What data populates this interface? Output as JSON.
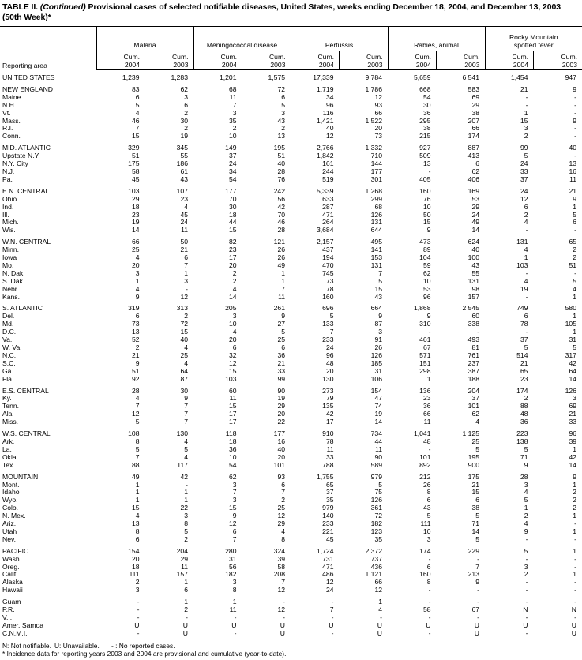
{
  "title": {
    "prefix": "TABLE II. ",
    "continued": "(Continued)",
    "text": " Provisional cases of selected notifiable diseases, United States, weeks ending December 18, 2004, and December 13, 2003 (50th Week)*"
  },
  "header": {
    "reporting_area": "Reporting area",
    "groups": [
      "Malaria",
      "Meningococcal disease",
      "Pertussis",
      "Rabies, animal",
      "Rocky Mountain spotted fever"
    ],
    "subcols": [
      {
        "l1": "Cum.",
        "l2": "2004"
      },
      {
        "l1": "Cum.",
        "l2": "2003"
      },
      {
        "l1": "Cum.",
        "l2": "2004"
      },
      {
        "l1": "Cum.",
        "l2": "2003"
      },
      {
        "l1": "Cum.",
        "l2": "2004"
      },
      {
        "l1": "Cum.",
        "l2": "2003"
      },
      {
        "l1": "Cum.",
        "l2": "2004"
      },
      {
        "l1": "Cum.",
        "l2": "2003"
      },
      {
        "l1": "Cum.",
        "l2": "2004"
      },
      {
        "l1": "Cum.",
        "l2": "2003"
      }
    ]
  },
  "groups": [
    {
      "rows": [
        {
          "area": "UNITED STATES",
          "values": [
            "1,239",
            "1,283",
            "1,201",
            "1,575",
            "17,339",
            "9,784",
            "5,659",
            "6,541",
            "1,454",
            "947"
          ]
        }
      ]
    },
    {
      "rows": [
        {
          "area": "NEW ENGLAND",
          "values": [
            "83",
            "62",
            "68",
            "72",
            "1,719",
            "1,786",
            "668",
            "583",
            "21",
            "9"
          ]
        },
        {
          "area": "Maine",
          "values": [
            "6",
            "3",
            "11",
            "6",
            "34",
            "12",
            "54",
            "69",
            "-",
            "-"
          ]
        },
        {
          "area": "N.H.",
          "values": [
            "5",
            "6",
            "7",
            "5",
            "96",
            "93",
            "30",
            "29",
            "-",
            "-"
          ]
        },
        {
          "area": "Vt.",
          "values": [
            "4",
            "2",
            "3",
            "3",
            "116",
            "66",
            "36",
            "38",
            "1",
            "-"
          ]
        },
        {
          "area": "Mass.",
          "values": [
            "46",
            "30",
            "35",
            "43",
            "1,421",
            "1,522",
            "295",
            "207",
            "15",
            "9"
          ]
        },
        {
          "area": "R.I.",
          "values": [
            "7",
            "2",
            "2",
            "2",
            "40",
            "20",
            "38",
            "66",
            "3",
            "-"
          ]
        },
        {
          "area": "Conn.",
          "values": [
            "15",
            "19",
            "10",
            "13",
            "12",
            "73",
            "215",
            "174",
            "2",
            "-"
          ]
        }
      ]
    },
    {
      "rows": [
        {
          "area": "MID. ATLANTIC",
          "values": [
            "329",
            "345",
            "149",
            "195",
            "2,766",
            "1,332",
            "927",
            "887",
            "99",
            "40"
          ]
        },
        {
          "area": "Upstate N.Y.",
          "values": [
            "51",
            "55",
            "37",
            "51",
            "1,842",
            "710",
            "509",
            "413",
            "5",
            "-"
          ]
        },
        {
          "area": "N.Y. City",
          "values": [
            "175",
            "186",
            "24",
            "40",
            "161",
            "144",
            "13",
            "6",
            "24",
            "13"
          ]
        },
        {
          "area": "N.J.",
          "values": [
            "58",
            "61",
            "34",
            "28",
            "244",
            "177",
            "-",
            "62",
            "33",
            "16"
          ]
        },
        {
          "area": "Pa.",
          "values": [
            "45",
            "43",
            "54",
            "76",
            "519",
            "301",
            "405",
            "406",
            "37",
            "11"
          ]
        }
      ]
    },
    {
      "rows": [
        {
          "area": "E.N. CENTRAL",
          "values": [
            "103",
            "107",
            "177",
            "242",
            "5,339",
            "1,268",
            "160",
            "169",
            "24",
            "21"
          ]
        },
        {
          "area": "Ohio",
          "values": [
            "29",
            "23",
            "70",
            "56",
            "633",
            "299",
            "76",
            "53",
            "12",
            "9"
          ]
        },
        {
          "area": "Ind.",
          "values": [
            "18",
            "4",
            "30",
            "42",
            "287",
            "68",
            "10",
            "29",
            "6",
            "1"
          ]
        },
        {
          "area": "Ill.",
          "values": [
            "23",
            "45",
            "18",
            "70",
            "471",
            "126",
            "50",
            "24",
            "2",
            "5"
          ]
        },
        {
          "area": "Mich.",
          "values": [
            "19",
            "24",
            "44",
            "46",
            "264",
            "131",
            "15",
            "49",
            "4",
            "6"
          ]
        },
        {
          "area": "Wis.",
          "values": [
            "14",
            "11",
            "15",
            "28",
            "3,684",
            "644",
            "9",
            "14",
            "-",
            "-"
          ]
        }
      ]
    },
    {
      "rows": [
        {
          "area": "W.N. CENTRAL",
          "values": [
            "66",
            "50",
            "82",
            "121",
            "2,157",
            "495",
            "473",
            "624",
            "131",
            "65"
          ]
        },
        {
          "area": "Minn.",
          "values": [
            "25",
            "21",
            "23",
            "26",
            "437",
            "141",
            "89",
            "40",
            "4",
            "2"
          ]
        },
        {
          "area": "Iowa",
          "values": [
            "4",
            "6",
            "17",
            "26",
            "194",
            "153",
            "104",
            "100",
            "1",
            "2"
          ]
        },
        {
          "area": "Mo.",
          "values": [
            "20",
            "7",
            "20",
            "49",
            "470",
            "131",
            "59",
            "43",
            "103",
            "51"
          ]
        },
        {
          "area": "N. Dak.",
          "values": [
            "3",
            "1",
            "2",
            "1",
            "745",
            "7",
            "62",
            "55",
            "-",
            "-"
          ]
        },
        {
          "area": "S. Dak.",
          "values": [
            "1",
            "3",
            "2",
            "1",
            "73",
            "5",
            "10",
            "131",
            "4",
            "5"
          ]
        },
        {
          "area": "Nebr.",
          "values": [
            "4",
            "-",
            "4",
            "7",
            "78",
            "15",
            "53",
            "98",
            "19",
            "4"
          ]
        },
        {
          "area": "Kans.",
          "values": [
            "9",
            "12",
            "14",
            "11",
            "160",
            "43",
            "96",
            "157",
            "-",
            "1"
          ]
        }
      ]
    },
    {
      "rows": [
        {
          "area": "S. ATLANTIC",
          "values": [
            "319",
            "313",
            "205",
            "261",
            "696",
            "664",
            "1,868",
            "2,545",
            "749",
            "580"
          ]
        },
        {
          "area": "Del.",
          "values": [
            "6",
            "2",
            "3",
            "9",
            "5",
            "9",
            "9",
            "60",
            "6",
            "1"
          ]
        },
        {
          "area": "Md.",
          "values": [
            "73",
            "72",
            "10",
            "27",
            "133",
            "87",
            "310",
            "338",
            "78",
            "105"
          ]
        },
        {
          "area": "D.C.",
          "values": [
            "13",
            "15",
            "4",
            "5",
            "7",
            "3",
            "-",
            "-",
            "-",
            "1"
          ]
        },
        {
          "area": "Va.",
          "values": [
            "52",
            "40",
            "20",
            "25",
            "233",
            "91",
            "461",
            "493",
            "37",
            "31"
          ]
        },
        {
          "area": "W. Va.",
          "values": [
            "2",
            "4",
            "6",
            "6",
            "24",
            "26",
            "67",
            "81",
            "5",
            "5"
          ]
        },
        {
          "area": "N.C.",
          "values": [
            "21",
            "25",
            "32",
            "36",
            "96",
            "126",
            "571",
            "761",
            "514",
            "317"
          ]
        },
        {
          "area": "S.C.",
          "values": [
            "9",
            "4",
            "12",
            "21",
            "48",
            "185",
            "151",
            "237",
            "21",
            "42"
          ]
        },
        {
          "area": "Ga.",
          "values": [
            "51",
            "64",
            "15",
            "33",
            "20",
            "31",
            "298",
            "387",
            "65",
            "64"
          ]
        },
        {
          "area": "Fla.",
          "values": [
            "92",
            "87",
            "103",
            "99",
            "130",
            "106",
            "1",
            "188",
            "23",
            "14"
          ]
        }
      ]
    },
    {
      "rows": [
        {
          "area": "E.S. CENTRAL",
          "values": [
            "28",
            "30",
            "60",
            "90",
            "273",
            "154",
            "136",
            "204",
            "174",
            "126"
          ]
        },
        {
          "area": "Ky.",
          "values": [
            "4",
            "9",
            "11",
            "19",
            "79",
            "47",
            "23",
            "37",
            "2",
            "3"
          ]
        },
        {
          "area": "Tenn.",
          "values": [
            "7",
            "7",
            "15",
            "29",
            "135",
            "74",
            "36",
            "101",
            "88",
            "69"
          ]
        },
        {
          "area": "Ala.",
          "values": [
            "12",
            "7",
            "17",
            "20",
            "42",
            "19",
            "66",
            "62",
            "48",
            "21"
          ]
        },
        {
          "area": "Miss.",
          "values": [
            "5",
            "7",
            "17",
            "22",
            "17",
            "14",
            "11",
            "4",
            "36",
            "33"
          ]
        }
      ]
    },
    {
      "rows": [
        {
          "area": "W.S. CENTRAL",
          "values": [
            "108",
            "130",
            "118",
            "177",
            "910",
            "734",
            "1,041",
            "1,125",
            "223",
            "96"
          ]
        },
        {
          "area": "Ark.",
          "values": [
            "8",
            "4",
            "18",
            "16",
            "78",
            "44",
            "48",
            "25",
            "138",
            "39"
          ]
        },
        {
          "area": "La.",
          "values": [
            "5",
            "5",
            "36",
            "40",
            "11",
            "11",
            "-",
            "5",
            "5",
            "1"
          ]
        },
        {
          "area": "Okla.",
          "values": [
            "7",
            "4",
            "10",
            "20",
            "33",
            "90",
            "101",
            "195",
            "71",
            "42"
          ]
        },
        {
          "area": "Tex.",
          "values": [
            "88",
            "117",
            "54",
            "101",
            "788",
            "589",
            "892",
            "900",
            "9",
            "14"
          ]
        }
      ]
    },
    {
      "rows": [
        {
          "area": "MOUNTAIN",
          "values": [
            "49",
            "42",
            "62",
            "93",
            "1,755",
            "979",
            "212",
            "175",
            "28",
            "9"
          ]
        },
        {
          "area": "Mont.",
          "values": [
            "1",
            "-",
            "3",
            "6",
            "65",
            "5",
            "26",
            "21",
            "3",
            "1"
          ]
        },
        {
          "area": "Idaho",
          "values": [
            "1",
            "1",
            "7",
            "7",
            "37",
            "75",
            "8",
            "15",
            "4",
            "2"
          ]
        },
        {
          "area": "Wyo.",
          "values": [
            "1",
            "1",
            "3",
            "2",
            "35",
            "126",
            "6",
            "6",
            "5",
            "2"
          ]
        },
        {
          "area": "Colo.",
          "values": [
            "15",
            "22",
            "15",
            "25",
            "979",
            "361",
            "43",
            "38",
            "1",
            "2"
          ]
        },
        {
          "area": "N. Mex.",
          "values": [
            "4",
            "3",
            "9",
            "12",
            "140",
            "72",
            "5",
            "5",
            "2",
            "1"
          ]
        },
        {
          "area": "Ariz.",
          "values": [
            "13",
            "8",
            "12",
            "29",
            "233",
            "182",
            "111",
            "71",
            "4",
            "-"
          ]
        },
        {
          "area": "Utah",
          "values": [
            "8",
            "5",
            "6",
            "4",
            "221",
            "123",
            "10",
            "14",
            "9",
            "1"
          ]
        },
        {
          "area": "Nev.",
          "values": [
            "6",
            "2",
            "7",
            "8",
            "45",
            "35",
            "3",
            "5",
            "-",
            "-"
          ]
        }
      ]
    },
    {
      "rows": [
        {
          "area": "PACIFIC",
          "values": [
            "154",
            "204",
            "280",
            "324",
            "1,724",
            "2,372",
            "174",
            "229",
            "5",
            "1"
          ]
        },
        {
          "area": "Wash.",
          "values": [
            "20",
            "29",
            "31",
            "39",
            "731",
            "737",
            "-",
            "-",
            "-",
            "-"
          ]
        },
        {
          "area": "Oreg.",
          "values": [
            "18",
            "11",
            "56",
            "58",
            "471",
            "436",
            "6",
            "7",
            "3",
            "-"
          ]
        },
        {
          "area": "Calif.",
          "values": [
            "111",
            "157",
            "182",
            "208",
            "486",
            "1,121",
            "160",
            "213",
            "2",
            "1"
          ]
        },
        {
          "area": "Alaska",
          "values": [
            "2",
            "1",
            "3",
            "7",
            "12",
            "66",
            "8",
            "9",
            "-",
            "-"
          ]
        },
        {
          "area": "Hawaii",
          "values": [
            "3",
            "6",
            "8",
            "12",
            "24",
            "12",
            "-",
            "-",
            "-",
            "-"
          ]
        }
      ]
    },
    {
      "rows": [
        {
          "area": "Guam",
          "values": [
            "-",
            "1",
            "1",
            "-",
            "-",
            "1",
            "-",
            "-",
            "-",
            "-"
          ]
        },
        {
          "area": "P.R.",
          "values": [
            "-",
            "2",
            "11",
            "12",
            "7",
            "4",
            "58",
            "67",
            "N",
            "N"
          ]
        },
        {
          "area": "V.I.",
          "values": [
            "-",
            "-",
            "-",
            "-",
            "-",
            "-",
            "-",
            "-",
            "-",
            "-"
          ]
        },
        {
          "area": "Amer. Samoa",
          "values": [
            "U",
            "U",
            "U",
            "U",
            "U",
            "U",
            "U",
            "U",
            "U",
            "U"
          ]
        },
        {
          "area": "C.N.M.I.",
          "values": [
            "-",
            "U",
            "-",
            "U",
            "-",
            "U",
            "-",
            "U",
            "-",
            "U"
          ]
        }
      ]
    }
  ],
  "footnotes": {
    "legend_n": "N: Not notifiable.",
    "legend_u": "U: Unavailable.",
    "legend_dash": "- : No reported cases.",
    "asterisk": "* Incidence data for reporting years 2003 and 2004 are provisional and cumulative (year-to-date)."
  }
}
